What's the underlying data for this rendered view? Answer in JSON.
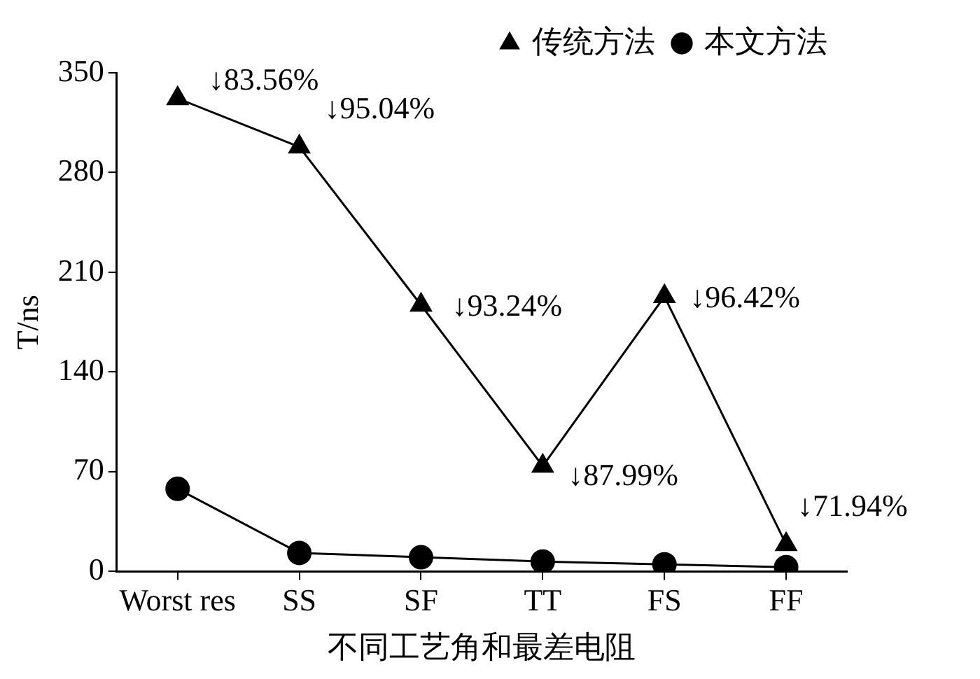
{
  "chart_data": {
    "type": "line",
    "xlabel": "不同工艺角和最差电阻",
    "ylabel": "T/ns",
    "categories": [
      "Worst res",
      "SS",
      "SF",
      "TT",
      "FS",
      "FF"
    ],
    "series": [
      {
        "name": "传统方法",
        "color": "#000000",
        "marker": "triangle",
        "values": [
          332,
          298,
          187,
          74,
          193,
          19
        ]
      },
      {
        "name": "本文方法",
        "color": "#000000",
        "marker": "circle",
        "values": [
          58,
          13,
          10,
          7,
          5,
          3
        ]
      }
    ],
    "ylim": [
      0,
      350
    ],
    "yticks": [
      0,
      70,
      140,
      210,
      280,
      350
    ],
    "grid": false,
    "legend": "top right",
    "annotations": [
      {
        "text": "↓83.56%",
        "x": "Worst res",
        "y": 332
      },
      {
        "text": "↓95.04%",
        "x": "SS",
        "y": 298
      },
      {
        "text": "↓93.24%",
        "x": "SF",
        "y": 187
      },
      {
        "text": "↓87.99%",
        "x": "TT",
        "y": 74
      },
      {
        "text": "↓96.42%",
        "x": "FS",
        "y": 193
      },
      {
        "text": "↓71.94%",
        "x": "FF",
        "y": 19
      }
    ]
  }
}
